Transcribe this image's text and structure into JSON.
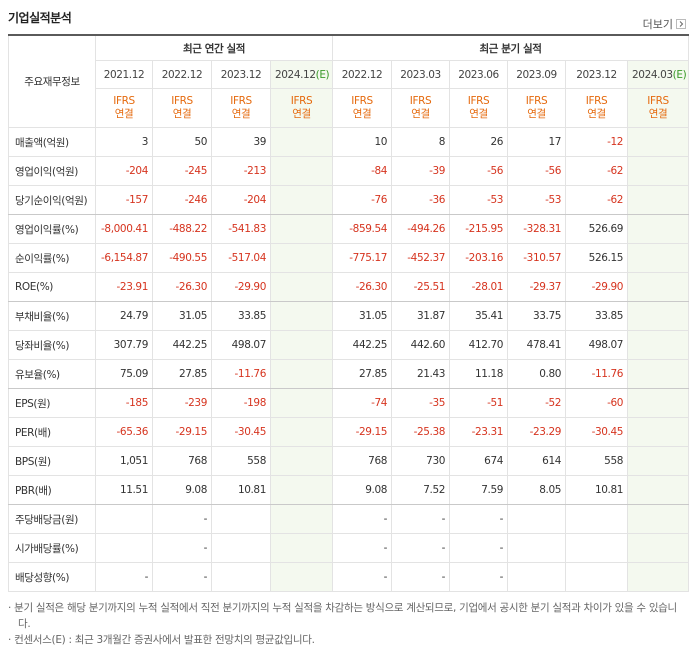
{
  "header": {
    "title": "기업실적분석",
    "more": "더보기"
  },
  "table": {
    "corner": "주요재무정보",
    "groups": [
      {
        "label": "최근 연간 실적",
        "span": 4
      },
      {
        "label": "최근 분기 실적",
        "span": 6
      }
    ],
    "columns": [
      {
        "period": "2021.12",
        "standard": "IFRS",
        "basis": "연결"
      },
      {
        "period": "2022.12",
        "standard": "IFRS",
        "basis": "연결"
      },
      {
        "period": "2023.12",
        "standard": "IFRS",
        "basis": "연결"
      },
      {
        "period": "2024.12",
        "suffix": "(E)",
        "standard": "IFRS",
        "basis": "연결"
      },
      {
        "period": "2022.12",
        "standard": "IFRS",
        "basis": "연결"
      },
      {
        "period": "2023.03",
        "standard": "IFRS",
        "basis": "연결"
      },
      {
        "period": "2023.06",
        "standard": "IFRS",
        "basis": "연결"
      },
      {
        "period": "2023.09",
        "standard": "IFRS",
        "basis": "연결"
      },
      {
        "period": "2023.12",
        "standard": "IFRS",
        "basis": "연결"
      },
      {
        "period": "2024.03",
        "suffix": "(E)",
        "standard": "IFRS",
        "basis": "연결"
      }
    ],
    "rows": [
      {
        "label": "매출액(억원)",
        "values": [
          "3",
          "50",
          "39",
          null,
          "10",
          "8",
          "26",
          "17",
          "-12",
          null
        ]
      },
      {
        "label": "영업이익(억원)",
        "values": [
          "-204",
          "-245",
          "-213",
          null,
          "-84",
          "-39",
          "-56",
          "-56",
          "-62",
          null
        ]
      },
      {
        "label": "당기순이익(억원)",
        "values": [
          "-157",
          "-246",
          "-204",
          null,
          "-76",
          "-36",
          "-53",
          "-53",
          "-62",
          null
        ]
      },
      {
        "label": "영업이익률(%)",
        "values": [
          "-8,000.41",
          "-488.22",
          "-541.83",
          null,
          "-859.54",
          "-494.26",
          "-215.95",
          "-328.31",
          "526.69",
          null
        ]
      },
      {
        "label": "순이익률(%)",
        "values": [
          "-6,154.87",
          "-490.55",
          "-517.04",
          null,
          "-775.17",
          "-452.37",
          "-203.16",
          "-310.57",
          "526.15",
          null
        ]
      },
      {
        "label": "ROE(%)",
        "values": [
          "-23.91",
          "-26.30",
          "-29.90",
          null,
          "-26.30",
          "-25.51",
          "-28.01",
          "-29.37",
          "-29.90",
          null
        ]
      },
      {
        "label": "부채비율(%)",
        "values": [
          "24.79",
          "31.05",
          "33.85",
          null,
          "31.05",
          "31.87",
          "35.41",
          "33.75",
          "33.85",
          null
        ]
      },
      {
        "label": "당좌비율(%)",
        "values": [
          "307.79",
          "442.25",
          "498.07",
          null,
          "442.25",
          "442.60",
          "412.70",
          "478.41",
          "498.07",
          null
        ]
      },
      {
        "label": "유보율(%)",
        "values": [
          "75.09",
          "27.85",
          "-11.76",
          null,
          "27.85",
          "21.43",
          "11.18",
          "0.80",
          "-11.76",
          null
        ]
      },
      {
        "label": "EPS(원)",
        "values": [
          "-185",
          "-239",
          "-198",
          null,
          "-74",
          "-35",
          "-51",
          "-52",
          "-60",
          null
        ]
      },
      {
        "label": "PER(배)",
        "values": [
          "-65.36",
          "-29.15",
          "-30.45",
          null,
          "-29.15",
          "-25.38",
          "-23.31",
          "-23.29",
          "-30.45",
          null
        ]
      },
      {
        "label": "BPS(원)",
        "values": [
          "1,051",
          "768",
          "558",
          null,
          "768",
          "730",
          "674",
          "614",
          "558",
          null
        ]
      },
      {
        "label": "PBR(배)",
        "values": [
          "11.51",
          "9.08",
          "10.81",
          null,
          "9.08",
          "7.52",
          "7.59",
          "8.05",
          "10.81",
          null
        ]
      },
      {
        "label": "주당배당금(원)",
        "values": [
          null,
          "-",
          null,
          null,
          "-",
          "-",
          "-",
          null,
          null,
          null
        ]
      },
      {
        "label": "시가배당률(%)",
        "values": [
          null,
          "-",
          null,
          null,
          "-",
          "-",
          "-",
          null,
          null,
          null
        ]
      },
      {
        "label": "배당성향(%)",
        "values": [
          "-",
          "-",
          null,
          null,
          "-",
          "-",
          "-",
          null,
          null,
          null
        ]
      }
    ]
  },
  "notes": [
    "분기 실적은 해당 분기까지의 누적 실적에서 직전 분기까지의 누적 실적을 차감하는 방식으로 계산되므로, 기업에서 공시한 분기 실적과 차이가 있을 수 있습니다.",
    "컨센서스(E) : 최근 3개월간 증권사에서 발표한 전망치의 평균값입니다."
  ]
}
